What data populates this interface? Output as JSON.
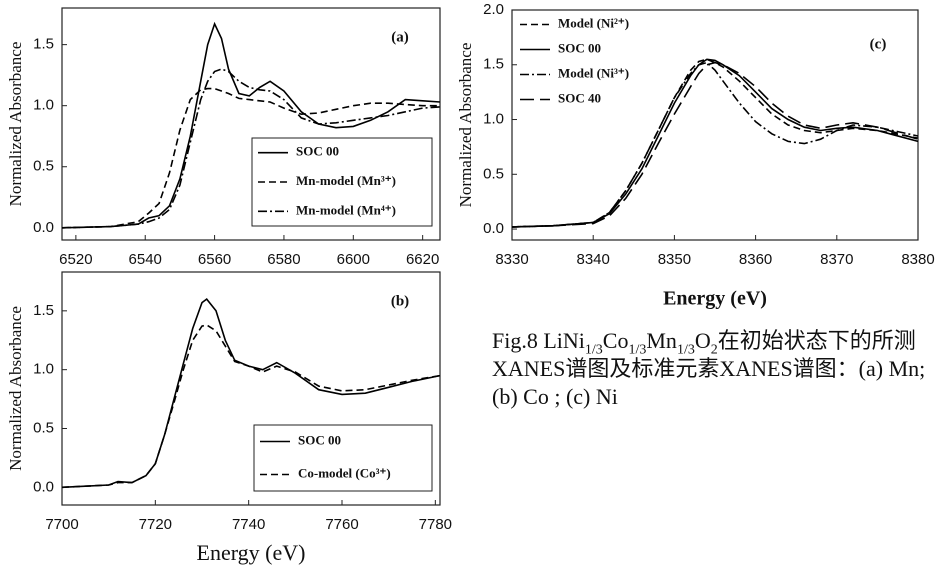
{
  "chart_data": [
    {
      "type": "line",
      "ylabel": "Normalized  Absorbance",
      "annotation": "(a)",
      "x": [
        6516,
        6530,
        6538,
        6541,
        6544,
        6547,
        6550,
        6553,
        6556,
        6558,
        6560,
        6562,
        6564,
        6567,
        6570,
        6573,
        6576,
        6580,
        6585,
        6590,
        6595,
        6600,
        6605,
        6610,
        6615,
        6620,
        6625
      ],
      "series": [
        {
          "name": "SOC 00",
          "color": "#000000",
          "style": "solid",
          "values": [
            0,
            0.01,
            0.03,
            0.08,
            0.1,
            0.18,
            0.4,
            0.75,
            1.2,
            1.5,
            1.67,
            1.55,
            1.3,
            1.1,
            1.08,
            1.15,
            1.2,
            1.12,
            0.95,
            0.85,
            0.82,
            0.83,
            0.88,
            0.95,
            1.05,
            1.04,
            1.03
          ]
        },
        {
          "name": "Mn-model (Mn³⁺)",
          "color": "#000000",
          "style": "dashed",
          "values": [
            0,
            0.01,
            0.05,
            0.12,
            0.2,
            0.45,
            0.8,
            1.05,
            1.13,
            1.14,
            1.14,
            1.12,
            1.1,
            1.06,
            1.05,
            1.04,
            1.03,
            0.98,
            0.93,
            0.94,
            0.97,
            1.0,
            1.02,
            1.02,
            1.01,
            1.0,
            1.0
          ]
        },
        {
          "name": "Mn-model (Mn⁴⁺)",
          "color": "#000000",
          "style": "dashdot",
          "values": [
            0,
            0.01,
            0.03,
            0.05,
            0.08,
            0.15,
            0.35,
            0.7,
            1.05,
            1.2,
            1.28,
            1.3,
            1.28,
            1.2,
            1.15,
            1.13,
            1.12,
            1.05,
            0.9,
            0.85,
            0.86,
            0.88,
            0.9,
            0.92,
            0.95,
            0.98,
            0.99
          ]
        }
      ],
      "xlim": [
        6516,
        6625
      ],
      "xticks": [
        6520,
        6540,
        6560,
        6580,
        6600,
        6620
      ],
      "ylim": [
        -0.1,
        1.8
      ],
      "yticks": [
        {
          "value": 0,
          "label": "0.0"
        },
        0.5,
        {
          "value": 1,
          "label": "1.0"
        },
        1.5
      ],
      "legend": "lower right"
    },
    {
      "type": "line",
      "ylabel": "Normalized  Absorbance",
      "xlabel": "Energy (eV)",
      "annotation": "(b)",
      "x": [
        7700,
        7705,
        7710,
        7712,
        7715,
        7718,
        7720,
        7722,
        7724,
        7726,
        7728,
        7730,
        7731,
        7733,
        7735,
        7737,
        7740,
        7743,
        7746,
        7750,
        7755,
        7760,
        7765,
        7770,
        7775,
        7781
      ],
      "series": [
        {
          "name": "SOC 00",
          "color": "#000000",
          "style": "solid",
          "values": [
            0,
            0.01,
            0.02,
            0.05,
            0.04,
            0.1,
            0.2,
            0.45,
            0.75,
            1.05,
            1.35,
            1.57,
            1.6,
            1.5,
            1.25,
            1.08,
            1.03,
            1.0,
            1.06,
            0.97,
            0.83,
            0.79,
            0.8,
            0.85,
            0.9,
            0.95
          ]
        },
        {
          "name": "Co-model (Co³⁺)",
          "color": "#000000",
          "style": "dashed",
          "values": [
            0,
            0.01,
            0.02,
            0.04,
            0.04,
            0.1,
            0.2,
            0.45,
            0.72,
            1.0,
            1.25,
            1.37,
            1.38,
            1.33,
            1.2,
            1.07,
            1.03,
            0.98,
            1.03,
            0.98,
            0.86,
            0.82,
            0.83,
            0.87,
            0.91,
            0.95
          ]
        }
      ],
      "xlim": [
        7700,
        7781
      ],
      "xticks": [
        7700,
        7720,
        7740,
        7760,
        7780
      ],
      "ylim": [
        -0.15,
        1.83
      ],
      "yticks": [
        {
          "value": 0,
          "label": "0.0"
        },
        0.5,
        {
          "value": 1,
          "label": "1.0"
        },
        1.5
      ],
      "legend": "lower right"
    },
    {
      "type": "line",
      "ylabel": "Normalized  Absorbance",
      "xlabel": "Energy (eV)",
      "annotation": "(c)",
      "x": [
        8330,
        8335,
        8340,
        8342,
        8344,
        8346,
        8348,
        8350,
        8352,
        8353,
        8354,
        8355,
        8356,
        8358,
        8360,
        8362,
        8364,
        8366,
        8368,
        8370,
        8372,
        8375,
        8380
      ],
      "series": [
        {
          "name": "Model (Ni²⁺)",
          "color": "#000000",
          "style": "dashed",
          "values": [
            0.02,
            0.03,
            0.06,
            0.15,
            0.35,
            0.6,
            0.9,
            1.2,
            1.45,
            1.53,
            1.55,
            1.52,
            1.48,
            1.35,
            1.2,
            1.05,
            0.95,
            0.9,
            0.88,
            0.9,
            0.92,
            0.9,
            0.83
          ]
        },
        {
          "name": "SOC 00",
          "color": "#000000",
          "style": "solid",
          "values": [
            0.02,
            0.03,
            0.06,
            0.14,
            0.32,
            0.55,
            0.85,
            1.15,
            1.4,
            1.5,
            1.55,
            1.54,
            1.5,
            1.4,
            1.25,
            1.1,
            1.0,
            0.93,
            0.9,
            0.92,
            0.93,
            0.9,
            0.8
          ]
        },
        {
          "name": "Model (Ni³⁺)",
          "color": "#000000",
          "style": "dashdot",
          "values": [
            0.02,
            0.03,
            0.06,
            0.15,
            0.35,
            0.6,
            0.9,
            1.2,
            1.42,
            1.5,
            1.52,
            1.45,
            1.35,
            1.15,
            0.98,
            0.87,
            0.8,
            0.78,
            0.82,
            0.9,
            0.95,
            0.93,
            0.85
          ]
        },
        {
          "name": "SOC 40",
          "color": "#000000",
          "style": "longdash",
          "values": [
            0.02,
            0.03,
            0.05,
            0.12,
            0.28,
            0.5,
            0.78,
            1.05,
            1.3,
            1.42,
            1.5,
            1.52,
            1.5,
            1.42,
            1.3,
            1.15,
            1.03,
            0.95,
            0.92,
            0.95,
            0.97,
            0.93,
            0.82
          ]
        }
      ],
      "xlim": [
        8330,
        8380
      ],
      "xticks": [
        8330,
        8340,
        8350,
        8360,
        8370,
        8380
      ],
      "ylim": [
        -0.1,
        2.0
      ],
      "yticks": [
        {
          "value": 0,
          "label": "0.0"
        },
        0.5,
        {
          "value": 1,
          "label": "1.0"
        },
        1.5,
        {
          "value": 2,
          "label": "2.0"
        }
      ],
      "legend": "upper left"
    }
  ],
  "caption": [
    {
      "text": "Fig.8 LiNi"
    },
    {
      "text": "1/3",
      "sub": true
    },
    {
      "text": "Co"
    },
    {
      "text": "1/3",
      "sub": true
    },
    {
      "text": "Mn"
    },
    {
      "text": "1/3",
      "sub": true
    },
    {
      "text": "O"
    },
    {
      "text": "2",
      "sub": true
    },
    {
      "text": "在初始状态下的所测XANES谱图及标准元素XANES谱图：(a) Mn; (b) Co ; (c) Ni"
    }
  ]
}
